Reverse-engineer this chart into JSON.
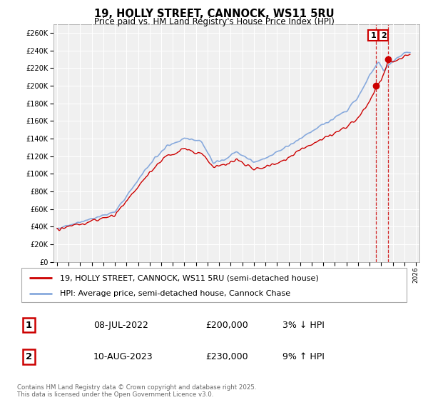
{
  "title": "19, HOLLY STREET, CANNOCK, WS11 5RU",
  "subtitle": "Price paid vs. HM Land Registry's House Price Index (HPI)",
  "ytick_values": [
    0,
    20000,
    40000,
    60000,
    80000,
    100000,
    120000,
    140000,
    160000,
    180000,
    200000,
    220000,
    240000,
    260000
  ],
  "ylim": [
    0,
    270000
  ],
  "xlim_left": 1994.7,
  "xlim_right": 2026.3,
  "legend1": "19, HOLLY STREET, CANNOCK, WS11 5RU (semi-detached house)",
  "legend2": "HPI: Average price, semi-detached house, Cannock Chase",
  "color_price": "#cc0000",
  "color_hpi": "#88aadd",
  "transaction1_date": "08-JUL-2022",
  "transaction1_price": "£200,000",
  "transaction1_hpi": "3% ↓ HPI",
  "transaction2_date": "10-AUG-2023",
  "transaction2_price": "£230,000",
  "transaction2_hpi": "9% ↑ HPI",
  "footnote": "Contains HM Land Registry data © Crown copyright and database right 2025.\nThis data is licensed under the Open Government Licence v3.0.",
  "background_color": "#ffffff",
  "plot_bg_color": "#f0f0f0",
  "grid_color": "#ffffff",
  "marker1_x": 2022.52,
  "marker1_y": 200000,
  "marker2_x": 2023.61,
  "marker2_y": 230000
}
